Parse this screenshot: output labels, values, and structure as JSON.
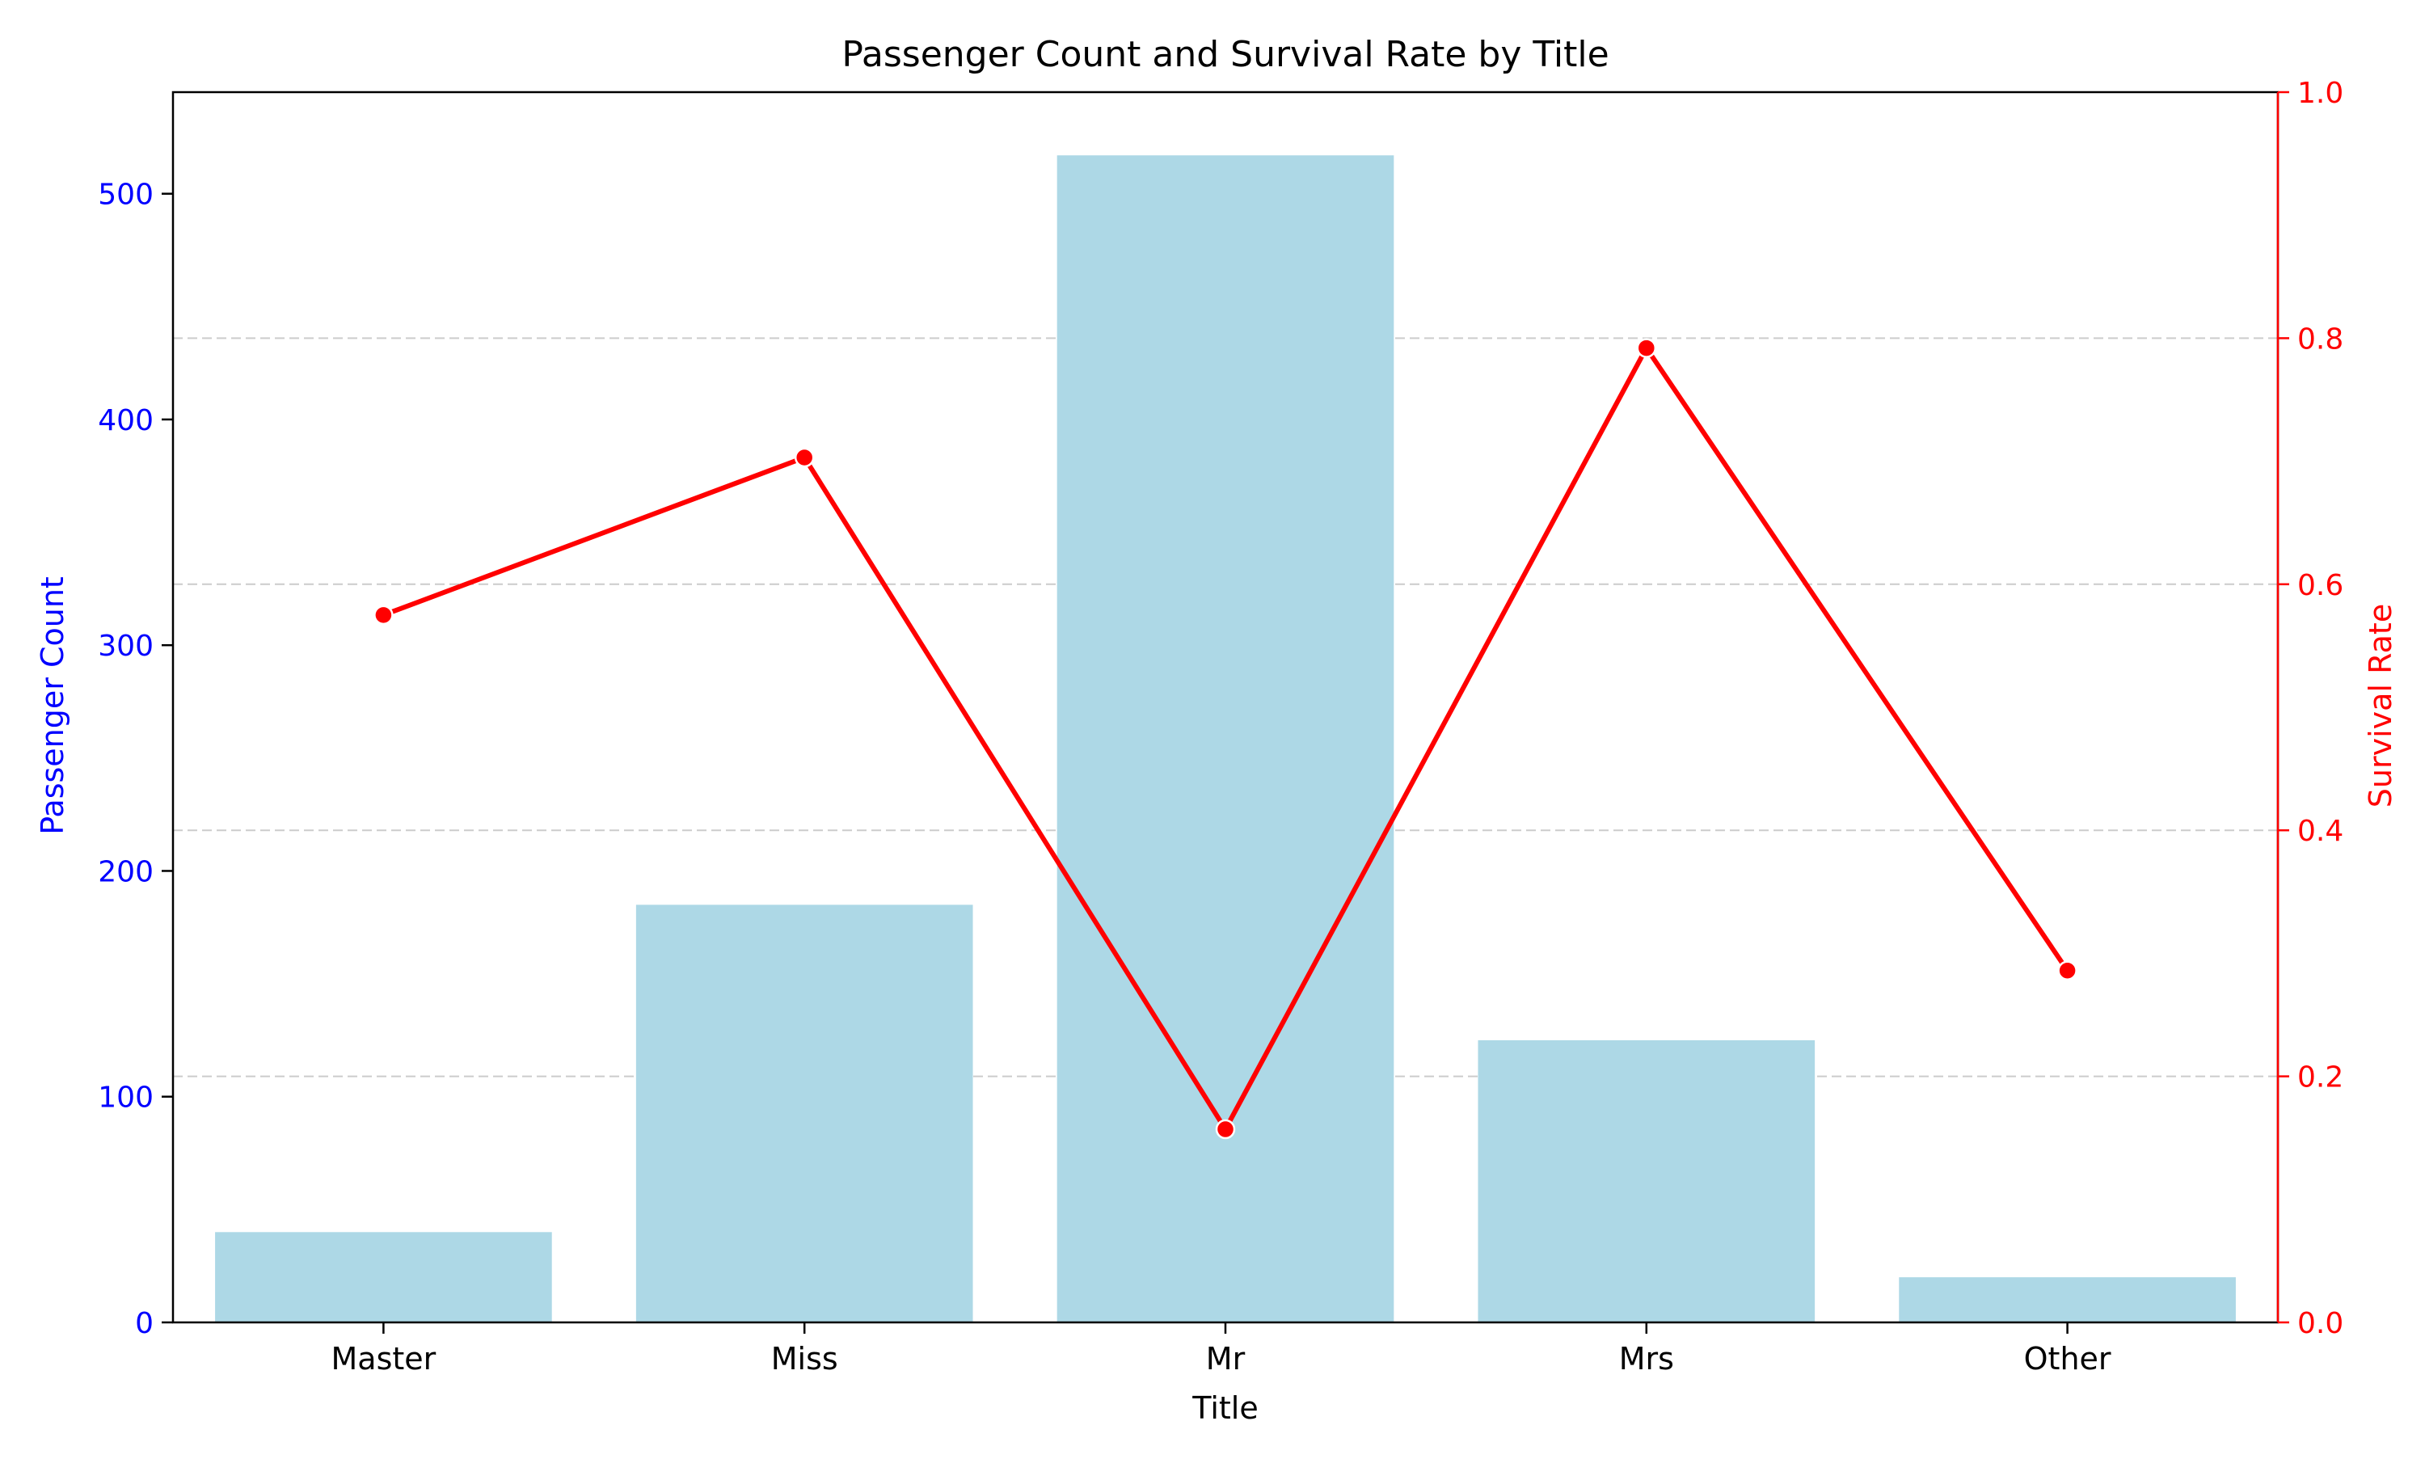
{
  "chart_data": {
    "type": "bar",
    "title": "Passenger Count and Survival Rate by Title",
    "xlabel": "Title",
    "ylabel": "Passenger Count",
    "y2label": "Survival Rate",
    "categories": [
      "Master",
      "Miss",
      "Mr",
      "Mrs",
      "Other"
    ],
    "ylim": [
      0,
      545
    ],
    "y2lim": [
      0.0,
      1.0
    ],
    "yticks": [
      0,
      100,
      200,
      300,
      400,
      500
    ],
    "y2ticks": [
      "0.0",
      "0.2",
      "0.4",
      "0.6",
      "0.8",
      "1.0"
    ],
    "grid": "horizontal dashed (right axis)",
    "series": [
      {
        "type": "bar",
        "axis": "left",
        "values": [
          40,
          185,
          517,
          125,
          20
        ]
      },
      {
        "type": "line",
        "axis": "right",
        "values": [
          0.575,
          0.703,
          0.157,
          0.792,
          0.286
        ]
      }
    ],
    "colors": {
      "bar": "#add8e6",
      "line": "#ff0000",
      "left_axis": "#0000ff",
      "right_axis": "#ff0000",
      "grid": "#cccccc"
    }
  }
}
